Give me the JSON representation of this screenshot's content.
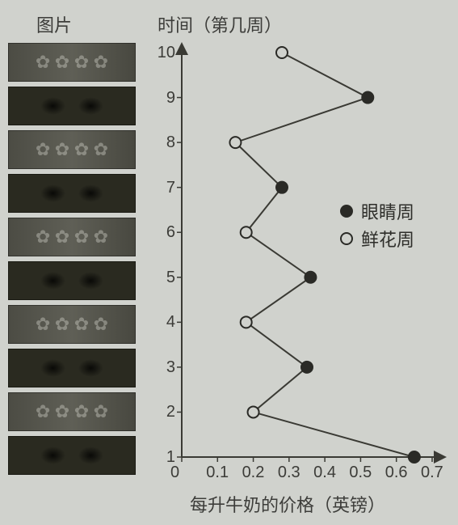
{
  "headers": {
    "thumbs": "图片",
    "time": "时间（第几周）",
    "xaxis": "每升牛奶的价格（英镑）"
  },
  "legend": {
    "eyes": "眼睛周",
    "flowers": "鲜花周"
  },
  "chart": {
    "type": "line",
    "marker_stroke": "#2a2a26",
    "marker_radius": 7,
    "line_color": "#3a3a34",
    "line_width": 2,
    "background_color": "#d0d2cd",
    "xlim": [
      0,
      0.7
    ],
    "ylim": [
      1,
      10
    ],
    "x_ticks": [
      0,
      0.1,
      0.2,
      0.3,
      0.4,
      0.5,
      0.6,
      0.7
    ],
    "y_ticks": [
      1,
      2,
      3,
      4,
      5,
      6,
      7,
      8,
      9,
      10
    ],
    "points": [
      {
        "week": 1,
        "value": 0.65,
        "filled": true
      },
      {
        "week": 2,
        "value": 0.2,
        "filled": false
      },
      {
        "week": 3,
        "value": 0.35,
        "filled": true
      },
      {
        "week": 4,
        "value": 0.18,
        "filled": false
      },
      {
        "week": 5,
        "value": 0.36,
        "filled": true
      },
      {
        "week": 6,
        "value": 0.18,
        "filled": false
      },
      {
        "week": 7,
        "value": 0.28,
        "filled": true
      },
      {
        "week": 8,
        "value": 0.15,
        "filled": false
      },
      {
        "week": 9,
        "value": 0.52,
        "filled": true
      },
      {
        "week": 10,
        "value": 0.28,
        "filled": false
      }
    ],
    "thumb_pattern": [
      "flowers",
      "eyes",
      "flowers",
      "eyes",
      "flowers",
      "eyes",
      "flowers",
      "eyes",
      "flowers",
      "eyes"
    ]
  }
}
